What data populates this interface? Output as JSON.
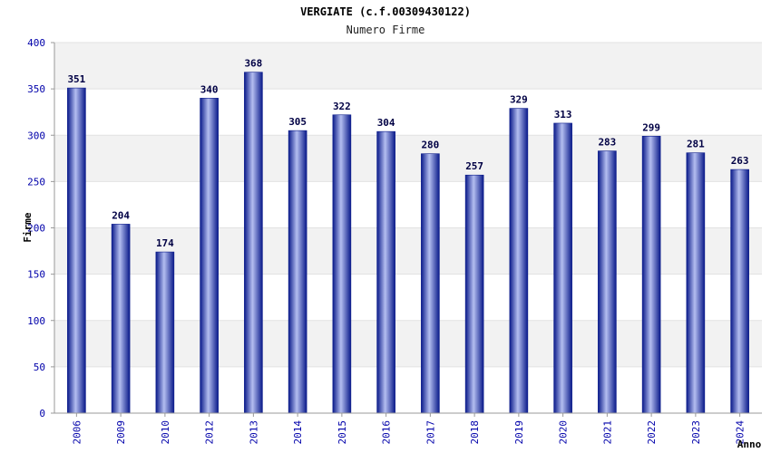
{
  "chart_data": {
    "type": "bar",
    "title": "VERGIATE (c.f.00309430122)",
    "subtitle": "Numero Firme",
    "xlabel": "Anno",
    "ylabel": "Firme",
    "categories": [
      "2006",
      "2009",
      "2010",
      "2012",
      "2013",
      "2014",
      "2015",
      "2016",
      "2017",
      "2018",
      "2019",
      "2020",
      "2021",
      "2022",
      "2023",
      "2024"
    ],
    "values": [
      351,
      204,
      174,
      340,
      368,
      305,
      322,
      304,
      280,
      257,
      329,
      313,
      283,
      299,
      281,
      263
    ],
    "ylim": [
      0,
      400
    ],
    "yticks": [
      0,
      50,
      100,
      150,
      200,
      250,
      300,
      350,
      400
    ],
    "grid": true,
    "colors": {
      "bar_dark": "#0a1a8a",
      "bar_light": "#b4bef0",
      "tick": "#0000aa",
      "band": "#f2f2f2"
    }
  }
}
